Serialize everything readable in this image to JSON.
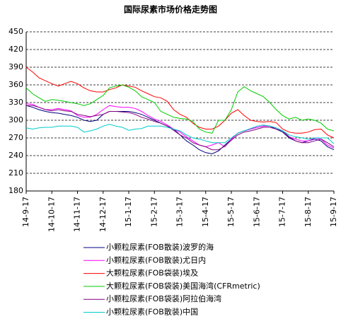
{
  "chart_data": {
    "type": "line",
    "title": "国际尿素市场价格走势图",
    "categories": [
      "14-9-17",
      null,
      null,
      null,
      "14-10-17",
      null,
      null,
      null,
      "14-11-17",
      null,
      null,
      null,
      "14-12-17",
      null,
      null,
      null,
      "15-1-17",
      null,
      null,
      null,
      "15-2-17",
      null,
      null,
      null,
      "15-3-17",
      null,
      null,
      null,
      "15-4-17",
      null,
      null,
      null,
      "15-5-17",
      null,
      null,
      null,
      "15-6-17",
      null,
      null,
      null,
      "15-7-17",
      null,
      null,
      null,
      "15-8-17",
      null,
      null,
      null,
      "15-9-17"
    ],
    "ylim": [
      180,
      450
    ],
    "yticks": [
      180,
      210,
      240,
      270,
      300,
      330,
      360,
      390,
      420,
      450
    ],
    "grid": true,
    "series": [
      {
        "name": "小颗粒尿素(FOB散装)波罗的海",
        "color": "#000080",
        "values": [
          325,
          322,
          318,
          315,
          313,
          312,
          310,
          308,
          305,
          300,
          298,
          300,
          310,
          315,
          315,
          315,
          315,
          313,
          310,
          305,
          300,
          295,
          290,
          285,
          275,
          265,
          258,
          250,
          245,
          243,
          248,
          258,
          268,
          278,
          282,
          285,
          288,
          290,
          290,
          285,
          280,
          270,
          265,
          262,
          265,
          268,
          265,
          255,
          250
        ]
      },
      {
        "name": "小颗粒尿素(FOB散装)尤日内",
        "color": "#ff00ff",
        "values": [
          328,
          327,
          322,
          318,
          318,
          320,
          318,
          316,
          308,
          305,
          305,
          310,
          318,
          325,
          323,
          322,
          322,
          320,
          315,
          308,
          302,
          298,
          292,
          285,
          280,
          272,
          265,
          258,
          255,
          258,
          262,
          255,
          268,
          278,
          282,
          285,
          288,
          290,
          290,
          287,
          282,
          272,
          268,
          265,
          265,
          270,
          268,
          258,
          253
        ]
      },
      {
        "name": "大颗粒尿素(FOB袋装)埃及",
        "color": "#ff0000",
        "values": [
          390,
          382,
          372,
          367,
          362,
          358,
          362,
          366,
          362,
          355,
          350,
          348,
          348,
          352,
          355,
          360,
          358,
          356,
          350,
          345,
          340,
          338,
          332,
          318,
          310,
          305,
          295,
          288,
          285,
          285,
          290,
          300,
          312,
          318,
          308,
          300,
          298,
          297,
          298,
          296,
          285,
          280,
          278,
          278,
          280,
          284,
          285,
          275,
          270
        ]
      },
      {
        "name": "大颗粒尿素(FOB袋装)美国海湾(CFRmetric)",
        "color": "#00cc00",
        "values": [
          355,
          345,
          338,
          332,
          335,
          334,
          332,
          330,
          328,
          325,
          328,
          335,
          342,
          355,
          358,
          360,
          356,
          350,
          340,
          335,
          330,
          315,
          310,
          305,
          303,
          302,
          298,
          285,
          280,
          278,
          300,
          300,
          318,
          348,
          357,
          350,
          345,
          340,
          330,
          318,
          308,
          302,
          305,
          300,
          302,
          300,
          295,
          285,
          282
        ]
      },
      {
        "name": "小颗粒尿素(FOB袋装)阿拉伯海湾",
        "color": "#800080",
        "values": [
          325,
          325,
          322,
          318,
          316,
          318,
          316,
          315,
          310,
          308,
          306,
          308,
          310,
          315,
          315,
          314,
          313,
          310,
          305,
          302,
          298,
          295,
          290,
          283,
          275,
          270,
          262,
          258,
          255,
          250,
          250,
          256,
          266,
          275,
          280,
          282,
          285,
          288,
          288,
          285,
          282,
          272,
          265,
          262,
          262,
          265,
          268,
          262,
          255
        ]
      },
      {
        "name": "小颗粒尿素(FOB散装)中国",
        "color": "#00cccc",
        "values": [
          287,
          285,
          287,
          288,
          288,
          290,
          290,
          290,
          288,
          280,
          282,
          285,
          290,
          293,
          290,
          288,
          283,
          285,
          286,
          290,
          290,
          290,
          288,
          285,
          282,
          275,
          270,
          268,
          265,
          262,
          262,
          262,
          270,
          278,
          282,
          286,
          290,
          292,
          290,
          287,
          282,
          275,
          272,
          270,
          268,
          270,
          270,
          270,
          260
        ]
      }
    ]
  }
}
